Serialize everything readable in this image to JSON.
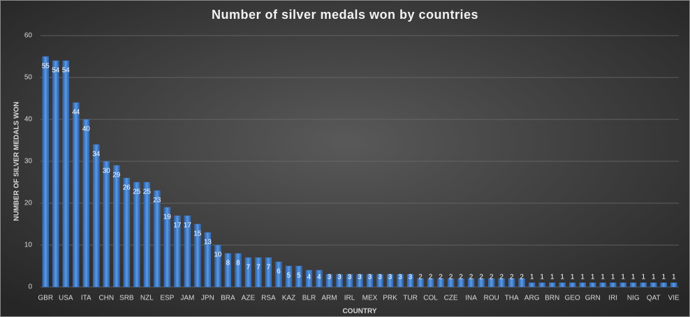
{
  "chart_data": {
    "type": "bar",
    "title": "Number of silver medals won by countries",
    "x_label": "COUNTRY",
    "y_label": "NUMBER OF SILVER MEDALS WON",
    "categories": [
      "GBR",
      null,
      "USA",
      null,
      "ITA",
      null,
      "CHN",
      null,
      "SRB",
      null,
      "NZL",
      null,
      "ESP",
      null,
      "JAM",
      null,
      "JPN",
      null,
      "BRA",
      null,
      "AZE",
      null,
      "RSA",
      null,
      "KAZ",
      null,
      "BLR",
      null,
      "ARM",
      null,
      "IRL",
      null,
      "MEX",
      null,
      "PRK",
      null,
      "TUR",
      null,
      "COL",
      null,
      "CZE",
      null,
      "INA",
      null,
      "ROU",
      null,
      "THA",
      null,
      "ARG",
      null,
      "BRN",
      null,
      "GEO",
      null,
      "GRN",
      null,
      "IRI",
      null,
      "NIG",
      null,
      "QAT",
      null,
      "VIE"
    ],
    "values": [
      55,
      54,
      54,
      44,
      40,
      34,
      30,
      29,
      26,
      25,
      25,
      23,
      19,
      17,
      17,
      15,
      13,
      10,
      8,
      8,
      7,
      7,
      7,
      6,
      5,
      5,
      4,
      4,
      3,
      3,
      3,
      3,
      3,
      3,
      3,
      3,
      3,
      2,
      2,
      2,
      2,
      2,
      2,
      2,
      2,
      2,
      2,
      2,
      1,
      1,
      1,
      1,
      1,
      1,
      1,
      1,
      1,
      1,
      1,
      1,
      1,
      1,
      1
    ],
    "color": "#3f7fd4",
    "ylim": [
      0,
      60
    ],
    "yticks": [
      0,
      10,
      20,
      30,
      40,
      50,
      60
    ],
    "grid": true
  }
}
